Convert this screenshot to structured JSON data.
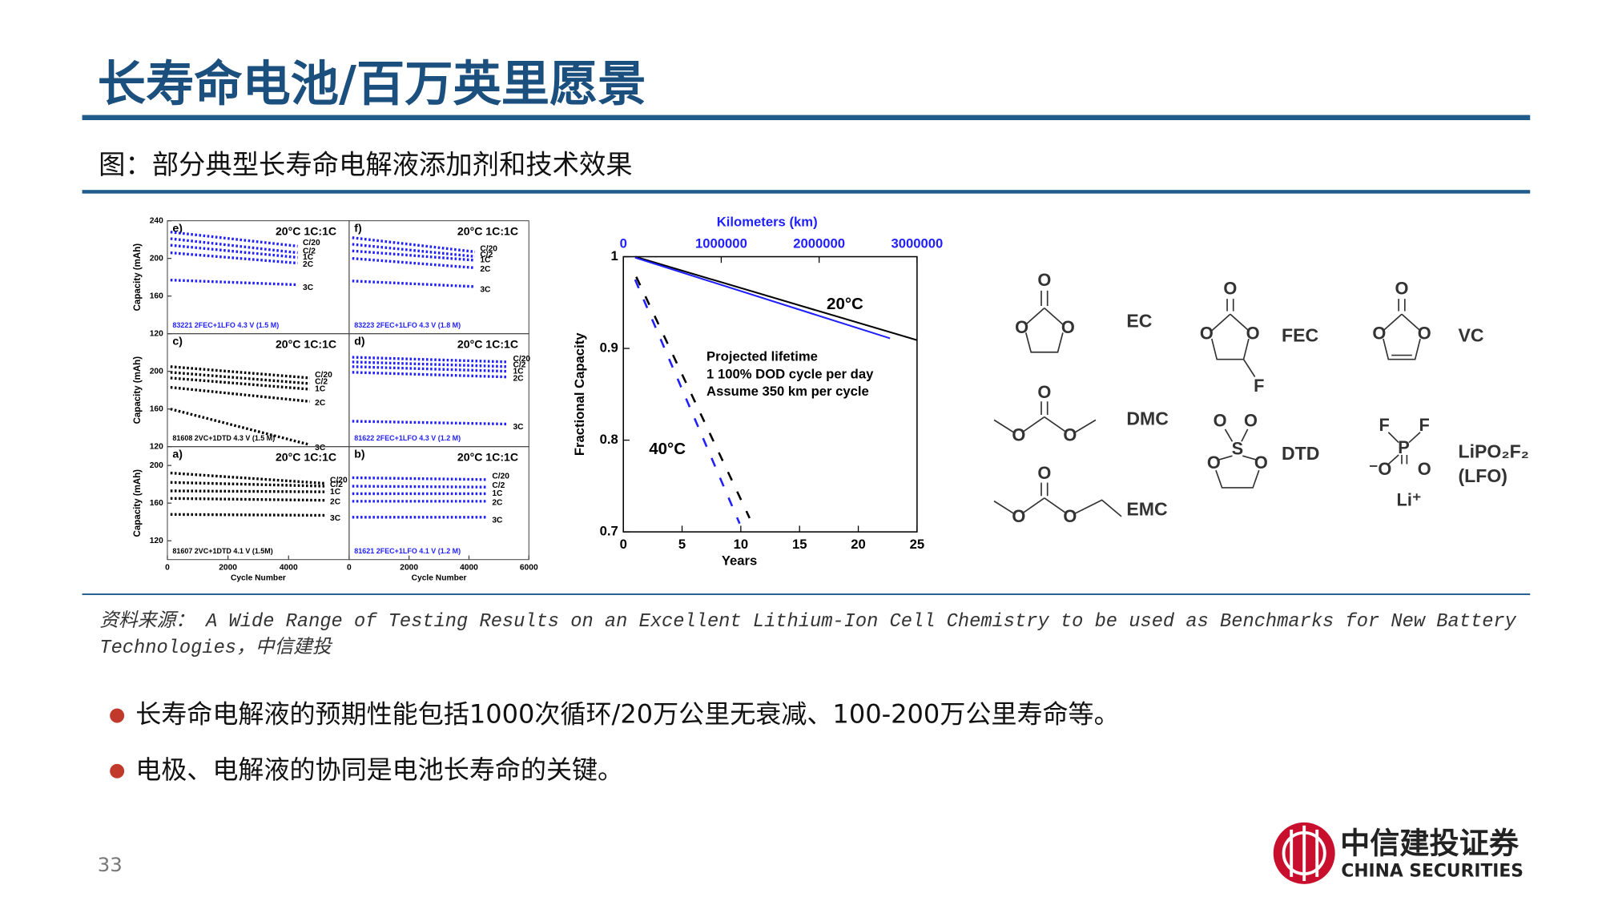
{
  "header": {
    "title": "长寿命电池/百万英里愿景",
    "subtitle": "图：部分典型长寿命电解液添加剂和技术效果"
  },
  "figure": {
    "ylabel": "Capacity (mAh)",
    "xlabel": "Cycle Number",
    "xlim": [
      0,
      6000
    ],
    "xticks_left": [
      0,
      2000,
      4000
    ],
    "xticks_right": [
      0,
      2000,
      4000,
      6000
    ],
    "rows": [
      {
        "ylim": [
          120,
          240
        ],
        "yticks": [
          240,
          200,
          160,
          120
        ]
      },
      {
        "ylim": [
          120,
          240
        ],
        "yticks": [
          200,
          160,
          120
        ]
      },
      {
        "ylim": [
          100,
          220
        ],
        "yticks": [
          200,
          160,
          120
        ]
      }
    ],
    "panels": [
      {
        "label": "e)",
        "condition": "20°C 1C:1C",
        "cell": "83221 2FEC+1LFO 4.3 V (1.5 M)",
        "color": "#1f1fff",
        "cycles": 4300,
        "curves": [
          {
            "rate": "C/20",
            "start": 228,
            "end": 213
          },
          {
            "rate": "C/2",
            "start": 221,
            "end": 206
          },
          {
            "rate": "1C",
            "start": 214,
            "end": 201
          },
          {
            "rate": "2C",
            "start": 206,
            "end": 195
          },
          {
            "rate": "3C",
            "start": 177,
            "end": 172
          }
        ]
      },
      {
        "label": "f)",
        "condition": "20°C 1C:1C",
        "cell": "83223 2FEC+1LFO 4.3 V (1.8 M)",
        "color": "#1f1fff",
        "cycles": 4200,
        "curves": [
          {
            "rate": "C/20",
            "start": 222,
            "end": 207
          },
          {
            "rate": "C/2",
            "start": 215,
            "end": 202
          },
          {
            "rate": "1C",
            "start": 208,
            "end": 198
          },
          {
            "rate": "2C",
            "start": 200,
            "end": 190
          },
          {
            "rate": "3C",
            "start": 176,
            "end": 170
          }
        ]
      },
      {
        "label": "c)",
        "condition": "20°C 1C:1C",
        "cell": "81608 2VC+1DTD 4.3 V (1.5 M)",
        "color": "#000000",
        "cycles": 4700,
        "curves": [
          {
            "rate": "C/20",
            "start": 205,
            "end": 193
          },
          {
            "rate": "C/2",
            "start": 199,
            "end": 187
          },
          {
            "rate": "1C",
            "start": 193,
            "end": 181
          },
          {
            "rate": "2C",
            "start": 183,
            "end": 168
          },
          {
            "rate": "3C",
            "start": 160,
            "end": 122
          }
        ]
      },
      {
        "label": "d)",
        "condition": "20°C 1C:1C",
        "cell": "81622 2FEC+1LFO 4.3 V (1.2 M)",
        "color": "#1f1fff",
        "cycles": 5300,
        "curves": [
          {
            "rate": "C/20",
            "start": 215,
            "end": 210
          },
          {
            "rate": "C/2",
            "start": 210,
            "end": 205
          },
          {
            "rate": "1C",
            "start": 205,
            "end": 200
          },
          {
            "rate": "2C",
            "start": 199,
            "end": 194
          },
          {
            "rate": "3C",
            "start": 147,
            "end": 144
          }
        ]
      },
      {
        "label": "a)",
        "condition": "20°C 1C:1C",
        "cell": "81607 2VC+1DTD 4.1 V (1.5M)",
        "color": "#000000",
        "cycles": 5200,
        "curves": [
          {
            "rate": "C/20",
            "start": 192,
            "end": 181
          },
          {
            "rate": "C/2",
            "start": 182,
            "end": 178
          },
          {
            "rate": "1C",
            "start": 173,
            "end": 172
          },
          {
            "rate": "2C",
            "start": 165,
            "end": 163
          },
          {
            "rate": "3C",
            "start": 148,
            "end": 147
          }
        ]
      },
      {
        "label": "b)",
        "condition": "20°C 1C:1C",
        "cell": "81621 2FEC+1LFO 4.1 V (1.2 M)",
        "color": "#1f1fff",
        "cycles": 4600,
        "curves": [
          {
            "rate": "C/20",
            "start": 187,
            "end": 185
          },
          {
            "rate": "C/2",
            "start": 178,
            "end": 177
          },
          {
            "rate": "1C",
            "start": 170,
            "end": 170
          },
          {
            "rate": "2C",
            "start": 162,
            "end": 162
          },
          {
            "rate": "3C",
            "start": 145,
            "end": 145
          }
        ]
      }
    ],
    "chart": {
      "type": "line",
      "xlabel": "Years",
      "ylabel": "Fractional Capacity",
      "x2label": "Kilometers (km)",
      "xlim": [
        0,
        25
      ],
      "xticks": [
        0,
        5,
        10,
        15,
        20,
        25
      ],
      "ylim": [
        0.7,
        1
      ],
      "yticks": [
        0.7,
        0.8,
        0.9,
        1
      ],
      "x2lim": [
        0,
        3000000
      ],
      "x2ticks": [
        0,
        1000000,
        2000000,
        3000000
      ],
      "series": [
        {
          "color": "#000000",
          "dash": false,
          "x": [
            1,
            25
          ],
          "y": [
            1,
            0.909
          ]
        },
        {
          "color": "#1f1fff",
          "dash": false,
          "x": [
            1,
            22.7
          ],
          "y": [
            0.999,
            0.911
          ]
        },
        {
          "color": "#000000",
          "dash": true,
          "x": [
            1.1,
            10.75
          ],
          "y": [
            0.978,
            0.715
          ]
        },
        {
          "color": "#1f1fff",
          "dash": true,
          "x": [
            1,
            9.9
          ],
          "y": [
            0.975,
            0.709
          ]
        }
      ],
      "annotations": [
        "20°C",
        "40°C",
        "Projected lifetime",
        "1 100% DOD cycle per day",
        "Assume 350 km per cycle"
      ]
    },
    "molecules": [
      {
        "name": "EC",
        "atoms": [
          "O",
          "O",
          "O"
        ]
      },
      {
        "name": "FEC",
        "atoms": [
          "O",
          "O",
          "O",
          "F"
        ]
      },
      {
        "name": "VC",
        "atoms": [
          "O",
          "O",
          "O"
        ]
      },
      {
        "name": "DMC",
        "atoms": [
          "O",
          "O",
          "O"
        ]
      },
      {
        "name": "DTD",
        "atoms": [
          "O",
          "O",
          "S",
          "O",
          "O"
        ]
      },
      {
        "name": "EMC",
        "atoms": [
          "O",
          "O",
          "O"
        ]
      },
      {
        "name": "LiPO₂F₂",
        "atoms": [
          "F",
          "F",
          "P",
          "⁻O",
          "O",
          "Li⁺"
        ],
        "abbr": "(LFO)"
      }
    ]
  },
  "source": [
    "资料来源：  A Wide Range of Testing Results on an Excellent Lithium-Ion Cell Chemistry to be used as Benchmarks for New Battery",
    "Technologies，中信建投"
  ],
  "bullets": [
    "长寿命电解液的预期性能包括1000次循环/20万公里无衰减、100-200万公里寿命等。",
    "电极、电解液的协同是电池长寿命的关键。"
  ],
  "footer": {
    "page": "33",
    "logo_cn": "中信建投证券",
    "logo_en": "CHINA SECURITIES"
  }
}
